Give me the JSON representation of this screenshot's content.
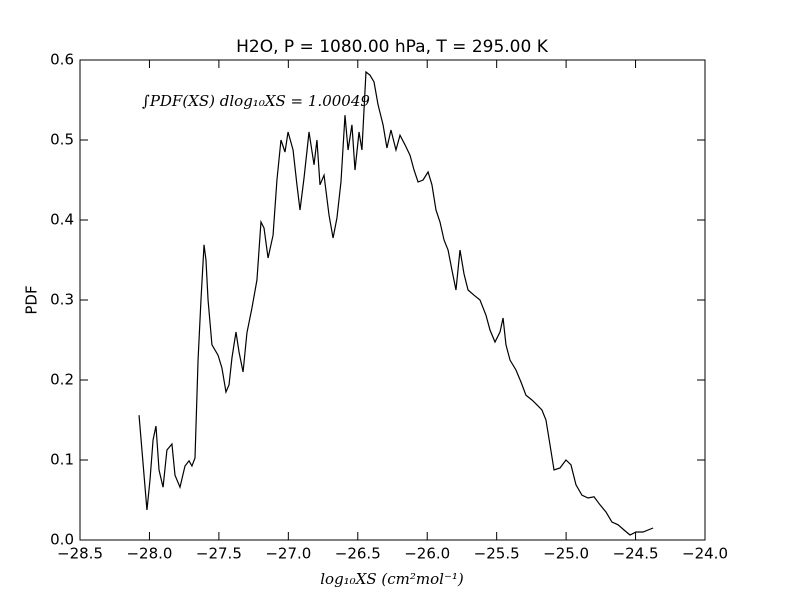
{
  "chart_data": {
    "type": "line",
    "title": "H2O, P = 1080.00 hPa, T = 295.00 K",
    "annotation": "∫PDF(XS) dlog₁₀XS = 1.00049",
    "xlabel": "log₁₀XS (cm²mol⁻¹)",
    "ylabel": "PDF",
    "xlim": [
      -28.5,
      -24.0
    ],
    "ylim": [
      0,
      0.6
    ],
    "xticks": [
      {
        "value": -28.5,
        "label": "−28.5"
      },
      {
        "value": -28.0,
        "label": "−28.0"
      },
      {
        "value": -27.5,
        "label": "−27.5"
      },
      {
        "value": -27.0,
        "label": "−27.0"
      },
      {
        "value": -26.5,
        "label": "−26.5"
      },
      {
        "value": -26.0,
        "label": "−26.0"
      },
      {
        "value": -25.5,
        "label": "−25.5"
      },
      {
        "value": -25.0,
        "label": "−25.0"
      },
      {
        "value": -24.5,
        "label": "−24.5"
      },
      {
        "value": -24.0,
        "label": "−24.0"
      }
    ],
    "yticks": [
      {
        "value": 0,
        "label": "0.0"
      },
      0.1,
      0.2,
      0.3,
      0.4,
      0.5,
      0.6
    ],
    "grid": false,
    "series": [
      {
        "color": "#000000",
        "x": [
          -28.075,
          -28.018,
          -27.996,
          -27.974,
          -27.953,
          -27.931,
          -27.902,
          -27.874,
          -27.838,
          -27.816,
          -27.78,
          -27.744,
          -27.715,
          -27.694,
          -27.672,
          -27.65,
          -27.629,
          -27.607,
          -27.593,
          -27.578,
          -27.55,
          -27.506,
          -27.478,
          -27.449,
          -27.427,
          -27.406,
          -27.377,
          -27.355,
          -27.326,
          -27.298,
          -27.262,
          -27.226,
          -27.197,
          -27.175,
          -27.146,
          -27.11,
          -27.082,
          -27.053,
          -27.024,
          -27.002,
          -26.966,
          -26.938,
          -26.916,
          -26.887,
          -26.851,
          -26.815,
          -26.794,
          -26.772,
          -26.743,
          -26.707,
          -26.678,
          -26.65,
          -26.621,
          -26.592,
          -26.57,
          -26.542,
          -26.52,
          -26.491,
          -26.47,
          -26.441,
          -26.412,
          -26.383,
          -26.354,
          -26.318,
          -26.29,
          -26.261,
          -26.225,
          -26.196,
          -26.16,
          -26.124,
          -26.095,
          -26.066,
          -26.03,
          -25.994,
          -25.966,
          -25.937,
          -25.908,
          -25.879,
          -25.85,
          -25.822,
          -25.793,
          -25.764,
          -25.735,
          -25.706,
          -25.663,
          -25.62,
          -25.577,
          -25.548,
          -25.512,
          -25.476,
          -25.454,
          -25.433,
          -25.404,
          -25.361,
          -25.325,
          -25.289,
          -25.246,
          -25.21,
          -25.174,
          -25.145,
          -25.116,
          -25.087,
          -25.044,
          -25.001,
          -24.965,
          -24.929,
          -24.886,
          -24.842,
          -24.799,
          -24.756,
          -24.713,
          -24.67,
          -24.626,
          -24.583,
          -24.54,
          -24.497,
          -24.446,
          -24.374
        ],
        "values": [
          0.156,
          0.0375,
          0.075,
          0.125,
          0.1425,
          0.0875,
          0.066,
          0.1125,
          0.12,
          0.081,
          0.066,
          0.0925,
          0.099,
          0.0925,
          0.1025,
          0.225,
          0.3,
          0.369,
          0.35,
          0.3,
          0.244,
          0.231,
          0.215,
          0.185,
          0.194,
          0.2275,
          0.26,
          0.235,
          0.21,
          0.259,
          0.29,
          0.325,
          0.3975,
          0.39,
          0.3525,
          0.381,
          0.45,
          0.5,
          0.485,
          0.51,
          0.4875,
          0.444,
          0.4125,
          0.4525,
          0.51,
          0.469,
          0.5,
          0.444,
          0.456,
          0.406,
          0.3775,
          0.4025,
          0.4475,
          0.531,
          0.4875,
          0.519,
          0.4625,
          0.51,
          0.4875,
          0.585,
          0.581,
          0.5725,
          0.544,
          0.519,
          0.49,
          0.5125,
          0.4875,
          0.506,
          0.494,
          0.481,
          0.4625,
          0.4475,
          0.45,
          0.46,
          0.444,
          0.4125,
          0.3975,
          0.375,
          0.3625,
          0.3375,
          0.3125,
          0.3625,
          0.3325,
          0.3125,
          0.306,
          0.3,
          0.281,
          0.2625,
          0.2475,
          0.26,
          0.2775,
          0.244,
          0.225,
          0.2125,
          0.1975,
          0.181,
          0.175,
          0.169,
          0.1625,
          0.15,
          0.119,
          0.0875,
          0.09,
          0.1,
          0.094,
          0.069,
          0.056,
          0.0525,
          0.054,
          0.044,
          0.035,
          0.0225,
          0.019,
          0.0125,
          0.00625,
          0.01,
          0.01,
          0.015
        ]
      }
    ]
  }
}
